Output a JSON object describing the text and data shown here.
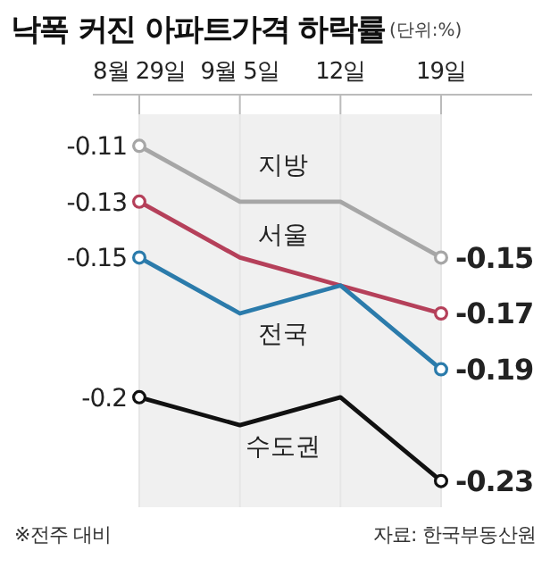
{
  "chart_data": {
    "type": "line",
    "title": "낙폭 커진 아파트가격 하락률",
    "subtitle": "(단위:%)",
    "categories": [
      "8월 29일",
      "9월 5일",
      "12일",
      "19일"
    ],
    "ylim": [
      -0.24,
      -0.1
    ],
    "marker": "circle",
    "grid": "x",
    "legend": false,
    "series": [
      {
        "name": "지방",
        "color": "#a6a6a6",
        "values": [
          -0.11,
          -0.13,
          -0.13,
          -0.15
        ],
        "value_labels": [
          "-0.11",
          null,
          null,
          "-0.15"
        ]
      },
      {
        "name": "서울",
        "color": "#b5405a",
        "values": [
          -0.13,
          -0.15,
          -0.16,
          -0.17
        ],
        "value_labels": [
          "-0.13",
          null,
          null,
          "-0.17"
        ]
      },
      {
        "name": "전국",
        "color": "#2b7bab",
        "values": [
          -0.15,
          -0.17,
          -0.16,
          -0.19
        ],
        "value_labels": [
          "-0.15",
          null,
          null,
          "-0.19"
        ]
      },
      {
        "name": "수도권",
        "color": "#111111",
        "values": [
          -0.2,
          -0.21,
          -0.2,
          -0.23
        ],
        "value_labels": [
          "-0.2",
          null,
          null,
          "-0.23"
        ]
      }
    ],
    "annotations": [
      "※전주 대비",
      "자료: 한국부동산원"
    ]
  }
}
